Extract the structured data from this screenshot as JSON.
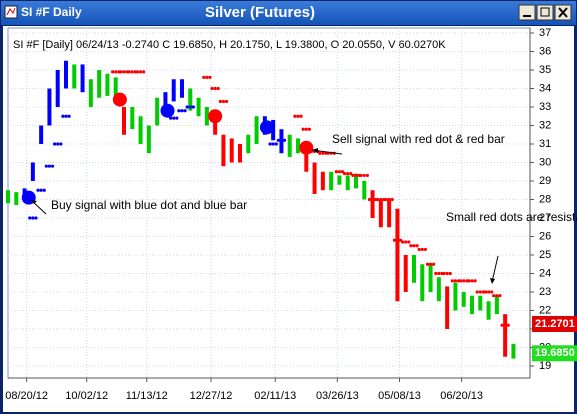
{
  "window_title": "SI #F Daily",
  "chart_data": {
    "type": "range-bar",
    "title": "Silver (Futures)",
    "info": "SI #F [Daily] 06/24/13 -0.2740 C 19.6850, H 20.1750, L 19.3800, O 20.0550, V 60.0270K",
    "xlim": [
      0,
      252
    ],
    "ylim": [
      18.35,
      37.27
    ],
    "xticks": [
      {
        "value": 9,
        "label": "08/20/12"
      },
      {
        "value": 38,
        "label": "10/02/12"
      },
      {
        "value": 67,
        "label": "11/13/12"
      },
      {
        "value": 98,
        "label": "12/27/12"
      },
      {
        "value": 129,
        "label": "02/11/13"
      },
      {
        "value": 159,
        "label": "03/26/13"
      },
      {
        "value": 189,
        "label": "05/08/13"
      },
      {
        "value": 219,
        "label": "06/20/13"
      }
    ],
    "yticks": [
      19,
      20,
      21,
      22,
      23,
      24,
      25,
      26,
      27,
      28,
      29,
      30,
      31,
      32,
      33,
      34,
      35,
      36,
      37
    ],
    "grid": true,
    "bars": {
      "x": [
        0,
        4,
        8,
        12,
        16,
        20,
        24,
        28,
        32,
        36,
        40,
        44,
        48,
        52,
        56,
        60,
        64,
        68,
        72,
        76,
        80,
        84,
        88,
        92,
        96,
        100,
        104,
        108,
        112,
        116,
        120,
        124,
        128,
        132,
        136,
        140,
        144,
        148,
        152,
        156,
        160,
        164,
        168,
        172,
        176,
        180,
        184,
        188,
        192,
        196,
        200,
        204,
        208,
        212,
        216,
        220,
        224,
        228,
        232,
        236,
        240,
        244
      ],
      "low": [
        27.8,
        27.7,
        27.9,
        29,
        31,
        32,
        33,
        34,
        34,
        33.8,
        33,
        33.5,
        33.6,
        33.5,
        31.5,
        31.8,
        31,
        30.5,
        32,
        32.5,
        33.3,
        33.5,
        32.8,
        32.5,
        32,
        31.5,
        29.8,
        30,
        30,
        30.5,
        31,
        31.5,
        31.2,
        30.5,
        30.3,
        30.5,
        29.5,
        28.3,
        28.5,
        28.5,
        28.8,
        28.5,
        28.6,
        28,
        27,
        26.5,
        26.5,
        22.5,
        23,
        23.5,
        22.5,
        23,
        22.5,
        21,
        22,
        22.2,
        21.8,
        22,
        21.5,
        21.8,
        19.5,
        19.4
      ],
      "high": [
        28.5,
        28.4,
        28.6,
        30,
        32,
        34,
        35,
        35.5,
        35.3,
        35.3,
        34.5,
        35,
        34.8,
        34.6,
        33,
        33,
        32.5,
        32,
        33.5,
        33.8,
        34.5,
        34.5,
        34,
        33.5,
        33,
        32.5,
        31.5,
        31.3,
        31,
        31.5,
        32.5,
        32.5,
        32.3,
        31.8,
        31.5,
        31.3,
        31,
        30,
        29.5,
        29.5,
        29.3,
        29.3,
        29.4,
        29,
        28.5,
        28,
        28,
        27.5,
        25,
        25,
        24.5,
        24.5,
        23.8,
        23.3,
        23.5,
        23,
        22.8,
        22.8,
        22.5,
        22.8,
        21.8,
        20.2
      ],
      "color": [
        "#00cc00",
        "#00cc00",
        "#0000ff",
        "#0000ff",
        "#0000ff",
        "#0000ff",
        "#0000ff",
        "#0000ff",
        "#00cc00",
        "#0000ff",
        "#00cc00",
        "#00cc00",
        "#00cc00",
        "#00cc00",
        "#ff0000",
        "#00cc00",
        "#00cc00",
        "#00cc00",
        "#00cc00",
        "#0000ff",
        "#0000ff",
        "#0000ff",
        "#00cc00",
        "#00cc00",
        "#00cc00",
        "#ff0000",
        "#ff0000",
        "#ff0000",
        "#ff0000",
        "#00cc00",
        "#00cc00",
        "#0000ff",
        "#0000ff",
        "#0000ff",
        "#00cc00",
        "#00cc00",
        "#ff0000",
        "#ff0000",
        "#ff0000",
        "#00cc00",
        "#00cc00",
        "#00cc00",
        "#00cc00",
        "#00cc00",
        "#ff0000",
        "#ff0000",
        "#ff0000",
        "#ff0000",
        "#ff0000",
        "#00cc00",
        "#00cc00",
        "#00cc00",
        "#00cc00",
        "#ff0000",
        "#00cc00",
        "#00cc00",
        "#00cc00",
        "#00cc00",
        "#00cc00",
        "#00cc00",
        "#ff0000",
        "#00cc00"
      ]
    },
    "resistance": {
      "color": "#ff0000",
      "x": [
        52,
        56,
        60,
        64,
        96,
        100,
        104,
        140,
        144,
        148,
        152,
        156,
        160,
        164,
        168,
        172,
        176,
        180,
        184,
        188,
        192,
        196,
        200,
        204,
        208,
        212,
        216,
        220,
        224,
        228,
        232,
        236,
        240
      ],
      "values": [
        34.9,
        34.9,
        34.9,
        34.9,
        34.6,
        34.0,
        33.3,
        32.5,
        31.8,
        30.6,
        30.5,
        30.5,
        29.5,
        29.4,
        29.3,
        29.3,
        28.0,
        28.0,
        28.0,
        25.8,
        25.7,
        25.5,
        25.3,
        24.5,
        24.0,
        24.0,
        23.6,
        23.6,
        23.6,
        23.0,
        23.0,
        22.8,
        21.2
      ]
    },
    "support": {
      "color": "#0000ff",
      "x": [
        12,
        16,
        20,
        24,
        28,
        80,
        84,
        88,
        128,
        132
      ],
      "values": [
        27.0,
        28.5,
        29.8,
        31.0,
        32.5,
        32.4,
        32.8,
        33.0,
        31.0,
        31.2
      ]
    },
    "signals": {
      "x": [
        10,
        54,
        77,
        100,
        125,
        144
      ],
      "values": [
        28.1,
        33.4,
        32.8,
        32.5,
        31.9,
        30.8
      ],
      "color": [
        "#0000ff",
        "#ff0000",
        "#0000ff",
        "#ff0000",
        "#0000ff",
        "#ff0000"
      ]
    },
    "price_labels": [
      {
        "value": 21.2701,
        "color": "#e00000"
      },
      {
        "value": {
          "value": 19.685,
          "label": "19.6850"
        },
        "color": "#22dd22"
      }
    ],
    "annotations": [
      "Buy signal with blue dot and blue bar",
      "Sell signal with red dot & red bar",
      "Small red dots are resistance"
    ]
  }
}
